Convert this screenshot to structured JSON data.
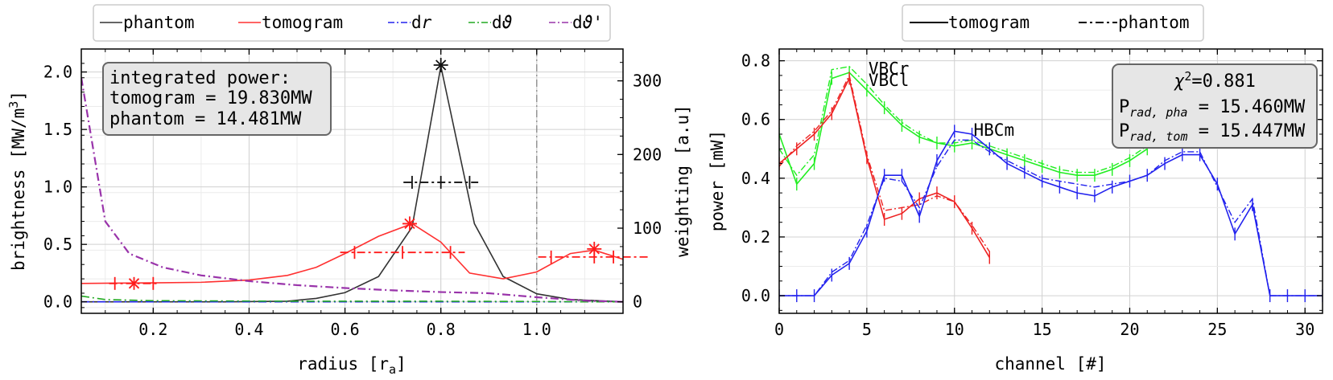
{
  "chart_data": [
    {
      "type": "line",
      "xlabel": "radius [r",
      "xlabel_sub": "a",
      "xlabel_end": "]",
      "ylabel": "brightness [MW/m",
      "ylabel_sup": "3",
      "ylabel_end": "]",
      "y2label": "weighting [a.u]",
      "xlim": [
        0.05,
        1.18
      ],
      "ylim": [
        -0.1,
        2.2
      ],
      "y2lim": [
        -15.6,
        343.2
      ],
      "xticks": [
        "0.2",
        "0.4",
        "0.6",
        "0.8",
        "1.0"
      ],
      "yticks": [
        "0.0",
        "0.5",
        "1.0",
        "1.5",
        "2.0"
      ],
      "y2ticks": [
        "0",
        "100",
        "200",
        "300"
      ],
      "grid": true,
      "legend_position": "top-outside",
      "legend": [
        {
          "label": "phantom",
          "color": "#333333",
          "style": "solid"
        },
        {
          "label": "tomogram",
          "color": "#ff3030",
          "style": "solid"
        },
        {
          "label": "d",
          "label_italic": "r",
          "color": "#2222ee",
          "style": "dashdot"
        },
        {
          "label": "d",
          "label_italic": "ϑ",
          "color": "#22aa22",
          "style": "dashdot"
        },
        {
          "label": "d",
          "label_italic": "ϑ",
          "label_suffix": "'",
          "color": "#9933aa",
          "style": "dashdot"
        }
      ],
      "info_box": {
        "line1": "integrated power:",
        "line2": "tomogram = 19.830MW",
        "line3": "phantom = 14.481MW"
      },
      "vline_x": 1.0,
      "series": [
        {
          "name": "phantom",
          "color": "#333333",
          "x": [
            0.05,
            0.2,
            0.35,
            0.48,
            0.54,
            0.6,
            0.67,
            0.74,
            0.8,
            0.87,
            0.93,
            1.0,
            1.07,
            1.18
          ],
          "y": [
            0.0,
            0.0,
            0.0,
            0.005,
            0.03,
            0.08,
            0.22,
            0.65,
            2.05,
            0.68,
            0.22,
            0.07,
            0.02,
            0.0
          ]
        },
        {
          "name": "tomogram",
          "color": "#ff3030",
          "x": [
            0.05,
            0.2,
            0.3,
            0.4,
            0.48,
            0.54,
            0.6,
            0.67,
            0.74,
            0.8,
            0.86,
            0.93,
            1.0,
            1.07,
            1.12,
            1.18
          ],
          "y": [
            0.16,
            0.165,
            0.17,
            0.19,
            0.23,
            0.3,
            0.42,
            0.57,
            0.68,
            0.52,
            0.25,
            0.2,
            0.26,
            0.42,
            0.45,
            0.37
          ]
        },
        {
          "name": "dr",
          "color": "#2222ee",
          "x": [
            0.05,
            0.2,
            0.5,
            0.8,
            1.0,
            1.1,
            1.18
          ],
          "y": [
            0.0,
            0.0,
            0.0,
            0.0,
            0.0,
            0.0,
            0.0
          ]
        },
        {
          "name": "dϑ",
          "color": "#22aa22",
          "x": [
            0.05,
            0.1,
            0.2,
            0.5,
            0.8,
            1.0,
            1.1,
            1.18
          ],
          "y": [
            0.05,
            0.02,
            0.01,
            0.005,
            0.005,
            0.003,
            0.0,
            0.0
          ]
        },
        {
          "name": "dϑ'",
          "color": "#9933aa",
          "x": [
            0.05,
            0.1,
            0.15,
            0.22,
            0.3,
            0.4,
            0.5,
            0.6,
            0.7,
            0.8,
            0.9,
            1.0,
            1.1,
            1.18
          ],
          "y": [
            1.95,
            0.7,
            0.42,
            0.3,
            0.23,
            0.18,
            0.145,
            0.12,
            0.1,
            0.085,
            0.075,
            0.04,
            0.01,
            0.0
          ]
        }
      ],
      "errorbars": [
        {
          "series": "phantom",
          "color": "#111111",
          "points": [
            {
              "x": 0.8,
              "y": 2.06,
              "xerr": 0.0
            },
            {
              "x": 0.8,
              "y": 1.04,
              "xerr": 0.06,
              "ticks": [
                0.74,
                0.86
              ]
            }
          ]
        },
        {
          "series": "tomogram",
          "color": "#ff1a1a",
          "points": [
            {
              "x": 0.16,
              "y": 0.16,
              "xerr": 0.04,
              "ticks": [
                0.12,
                0.2
              ]
            },
            {
              "x": 0.735,
              "y": 0.68,
              "xerr": 0.0
            },
            {
              "x": 0.72,
              "y": 0.43,
              "xerr": 0.1,
              "ticks": [
                0.62,
                0.82
              ]
            },
            {
              "x": 1.12,
              "y": 0.46,
              "xerr": 0.0
            },
            {
              "x": 1.12,
              "y": 0.39,
              "xerr": 0.09,
              "ticks": [
                1.03,
                1.16
              ]
            }
          ]
        }
      ]
    },
    {
      "type": "line",
      "xlabel": "channel [#]",
      "ylabel": "power [mW]",
      "xlim": [
        0,
        31
      ],
      "ylim": [
        -0.06,
        0.84
      ],
      "xticks": [
        "0",
        "5",
        "10",
        "15",
        "20",
        "25",
        "30"
      ],
      "yticks": [
        "0.0",
        "0.2",
        "0.4",
        "0.6",
        "0.8"
      ],
      "grid": true,
      "legend_position": "top-outside",
      "legend": [
        {
          "label": "tomogram",
          "style": "solid"
        },
        {
          "label": "phantom",
          "style": "dashdot"
        }
      ],
      "info_box": {
        "chi_label": "χ",
        "chi_sup": "2",
        "chi_value": "=0.881",
        "pha_label": "P",
        "pha_sub": "rad, pha",
        "pha_value": " = 15.460MW",
        "tom_label": "P",
        "tom_sub": "rad, tom",
        "tom_value": " = 15.447MW"
      },
      "camera_labels": [
        {
          "text": "VBCr",
          "color": "#22ee22",
          "x": 5.0,
          "y": 0.765
        },
        {
          "text": "VBCl",
          "color": "#ee2222",
          "x": 5.0,
          "y": 0.725
        },
        {
          "text": "HBCm",
          "color": "#2222ee",
          "x": 11.0,
          "y": 0.555
        }
      ],
      "series": [
        {
          "name": "VBCr",
          "color": "#22ee22",
          "x": [
            0,
            1,
            2,
            3,
            4,
            5,
            6,
            7,
            8,
            9,
            10,
            11,
            12,
            13,
            14,
            15,
            16,
            17,
            18,
            19,
            20,
            21
          ],
          "tomogram": [
            0.55,
            0.38,
            0.45,
            0.74,
            0.76,
            0.7,
            0.64,
            0.58,
            0.54,
            0.52,
            0.51,
            0.52,
            0.5,
            0.48,
            0.46,
            0.44,
            0.42,
            0.41,
            0.41,
            0.43,
            0.46,
            0.5
          ],
          "phantom": [
            0.5,
            0.41,
            0.48,
            0.77,
            0.78,
            0.72,
            0.65,
            0.59,
            0.55,
            0.52,
            0.52,
            0.53,
            0.51,
            0.49,
            0.47,
            0.45,
            0.43,
            0.42,
            0.42,
            0.44,
            0.47,
            0.51
          ]
        },
        {
          "name": "VBCl",
          "color": "#ee2222",
          "x": [
            0,
            1,
            2,
            3,
            4,
            5,
            6,
            7,
            8,
            9,
            10,
            11,
            12
          ],
          "tomogram": [
            0.45,
            0.5,
            0.55,
            0.62,
            0.74,
            0.47,
            0.26,
            0.28,
            0.33,
            0.35,
            0.32,
            0.23,
            0.13
          ],
          "phantom": [
            0.44,
            0.51,
            0.56,
            0.63,
            0.75,
            0.48,
            0.29,
            0.3,
            0.31,
            0.34,
            0.32,
            0.24,
            0.15
          ]
        },
        {
          "name": "HBCm",
          "color": "#2222ee",
          "x": [
            0,
            1,
            2,
            3,
            4,
            5,
            6,
            7,
            8,
            9,
            10,
            11,
            12,
            13,
            14,
            15,
            16,
            17,
            18,
            19,
            20,
            21,
            22,
            23,
            24,
            25,
            26,
            27,
            28,
            29,
            30,
            31
          ],
          "tomogram": [
            0.0,
            0.0,
            0.0,
            0.07,
            0.11,
            0.22,
            0.41,
            0.41,
            0.27,
            0.46,
            0.56,
            0.55,
            0.5,
            0.45,
            0.42,
            0.39,
            0.37,
            0.35,
            0.34,
            0.37,
            0.39,
            0.41,
            0.45,
            0.48,
            0.48,
            0.38,
            0.21,
            0.31,
            0.0,
            0.0,
            0.0,
            0.0
          ],
          "phantom": [
            0.0,
            0.0,
            0.0,
            0.08,
            0.12,
            0.24,
            0.4,
            0.39,
            0.3,
            0.44,
            0.53,
            0.53,
            0.49,
            0.46,
            0.43,
            0.4,
            0.39,
            0.38,
            0.37,
            0.38,
            0.39,
            0.41,
            0.46,
            0.49,
            0.49,
            0.37,
            0.25,
            0.33,
            0.0,
            0.0,
            0.0,
            0.0
          ]
        }
      ]
    }
  ]
}
